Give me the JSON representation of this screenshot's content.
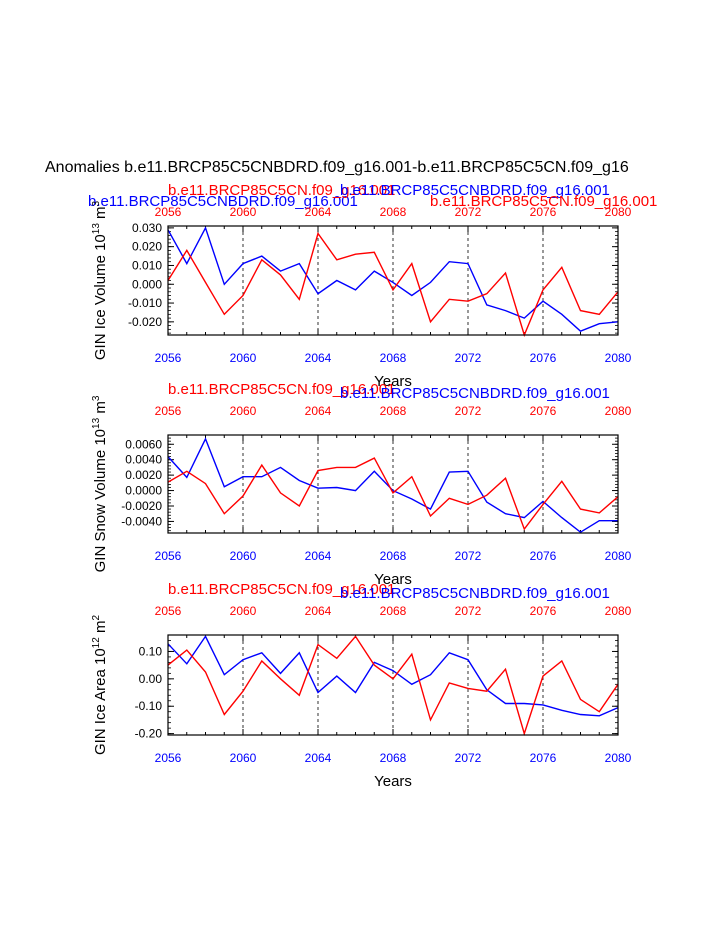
{
  "title": "Anomalies b.e11.BRCP85C5CNBDRD.f09_g16.001-b.e11.BRCP85C5CN.f09_g16",
  "colors": {
    "red": "#ff0000",
    "blue": "#0000ff",
    "black": "#000000"
  },
  "chart_data": [
    {
      "type": "line",
      "title_left_blue": "b.e11.BRCP85C5CNBDRD.f09_g16.001",
      "title_left_red": "b.e11.BRCP85C5CN.f09_g16.001",
      "title_center_blue": "b.e11.BRCP85C5CNBDRD.f09_g16.001",
      "title_right_red": "b.e11.BRCP85C5CN.f09_g16.001",
      "ylabel_main": "GIN Ice Volume 10",
      "ylabel_exp": "13",
      "ylabel_unit": " m",
      "ylabel_unit_exp": "3",
      "xlabel": "Years",
      "xlim": [
        2056,
        2080
      ],
      "ylim": [
        -0.027,
        0.031
      ],
      "yticks": [
        -0.02,
        -0.01,
        0.0,
        0.01,
        0.02,
        0.03
      ],
      "ytick_labels": [
        "-0.020",
        "-0.010",
        "0.000",
        "0.010",
        "0.020",
        "0.030"
      ],
      "xticks": [
        2056,
        2060,
        2064,
        2068,
        2072,
        2076,
        2080
      ],
      "xtick_labels": [
        "2056",
        "2060",
        "2064",
        "2068",
        "2072",
        "2076",
        "2080"
      ],
      "grid_x": [
        2060,
        2064,
        2068,
        2072,
        2076
      ],
      "x": [
        2056,
        2057,
        2058,
        2059,
        2060,
        2061,
        2062,
        2063,
        2064,
        2065,
        2066,
        2067,
        2068,
        2069,
        2070,
        2071,
        2072,
        2073,
        2074,
        2075,
        2076,
        2077,
        2078,
        2079,
        2080
      ],
      "series": [
        {
          "color": "blue",
          "values": [
            0.029,
            0.011,
            0.03,
            0.0,
            0.011,
            0.015,
            0.007,
            0.011,
            -0.005,
            0.002,
            -0.003,
            0.007,
            0.001,
            -0.006,
            0.001,
            0.012,
            0.011,
            -0.011,
            -0.014,
            -0.018,
            -0.009,
            -0.016,
            -0.025,
            -0.021,
            -0.02
          ]
        },
        {
          "color": "red",
          "values": [
            0.002,
            0.018,
            0.001,
            -0.016,
            -0.006,
            0.013,
            0.005,
            -0.008,
            0.027,
            0.013,
            0.016,
            0.017,
            -0.003,
            0.011,
            -0.02,
            -0.008,
            -0.009,
            -0.005,
            0.006,
            -0.027,
            -0.003,
            0.009,
            -0.014,
            -0.016,
            -0.004
          ]
        }
      ]
    },
    {
      "type": "line",
      "title_left_red": "b.e11.BRCP85C5CN.f09_g16.001",
      "title_center_blue": "b.e11.BRCP85C5CNBDRD.f09_g16.001",
      "ylabel_main": "GIN Snow Volume 10",
      "ylabel_exp": "13",
      "ylabel_unit": " m",
      "ylabel_unit_exp": "3",
      "xlabel": "Years",
      "xlim": [
        2056,
        2080
      ],
      "ylim": [
        -0.0055,
        0.0072
      ],
      "yticks": [
        -0.004,
        -0.002,
        0.0,
        0.002,
        0.004,
        0.006
      ],
      "ytick_labels": [
        "-0.0040",
        "-0.0020",
        "0.0000",
        "0.0020",
        "0.0040",
        "0.0060"
      ],
      "xticks": [
        2056,
        2060,
        2064,
        2068,
        2072,
        2076,
        2080
      ],
      "xtick_labels": [
        "2056",
        "2060",
        "2064",
        "2068",
        "2072",
        "2076",
        "2080"
      ],
      "grid_x": [
        2060,
        2064,
        2068,
        2072,
        2076
      ],
      "x": [
        2056,
        2057,
        2058,
        2059,
        2060,
        2061,
        2062,
        2063,
        2064,
        2065,
        2066,
        2067,
        2068,
        2069,
        2070,
        2071,
        2072,
        2073,
        2074,
        2075,
        2076,
        2077,
        2078,
        2079,
        2080
      ],
      "series": [
        {
          "color": "blue",
          "values": [
            0.0044,
            0.0017,
            0.0067,
            0.0005,
            0.0018,
            0.0018,
            0.003,
            0.0013,
            0.0003,
            0.0004,
            0.0,
            0.0025,
            0.0,
            -0.0011,
            -0.0024,
            0.0024,
            0.0025,
            -0.0015,
            -0.003,
            -0.0035,
            -0.0014,
            -0.0035,
            -0.0054,
            -0.0039,
            -0.0039
          ]
        },
        {
          "color": "red",
          "values": [
            0.0011,
            0.0025,
            0.0009,
            -0.003,
            -0.0007,
            0.0033,
            -0.0003,
            -0.002,
            0.0026,
            0.003,
            0.003,
            0.0042,
            -0.0003,
            0.0018,
            -0.0033,
            -0.001,
            -0.0018,
            -0.0006,
            0.0016,
            -0.005,
            -0.0018,
            0.0012,
            -0.0024,
            -0.0029,
            -0.0008
          ]
        }
      ]
    },
    {
      "type": "line",
      "title_left_red": "b.e11.BRCP85C5CN.f09_g16.001",
      "title_center_blue": "b.e11.BRCP85C5CNBDRD.f09_g16.001",
      "ylabel_main": "GIN Ice Area 10",
      "ylabel_exp": "12",
      "ylabel_unit": " m",
      "ylabel_unit_exp": "2",
      "xlabel": "Years",
      "xlim": [
        2056,
        2080
      ],
      "ylim": [
        -0.205,
        0.16
      ],
      "yticks": [
        -0.2,
        -0.1,
        0.0,
        0.1
      ],
      "ytick_labels": [
        "-0.20",
        "-0.10",
        "0.00",
        "0.10"
      ],
      "xticks": [
        2056,
        2060,
        2064,
        2068,
        2072,
        2076,
        2080
      ],
      "xtick_labels": [
        "2056",
        "2060",
        "2064",
        "2068",
        "2072",
        "2076",
        "2080"
      ],
      "grid_x": [
        2060,
        2064,
        2068,
        2072,
        2076
      ],
      "x": [
        2056,
        2057,
        2058,
        2059,
        2060,
        2061,
        2062,
        2063,
        2064,
        2065,
        2066,
        2067,
        2068,
        2069,
        2070,
        2071,
        2072,
        2073,
        2074,
        2075,
        2076,
        2077,
        2078,
        2079,
        2080
      ],
      "series": [
        {
          "color": "blue",
          "values": [
            0.128,
            0.055,
            0.155,
            0.015,
            0.07,
            0.095,
            0.02,
            0.095,
            -0.05,
            0.01,
            -0.05,
            0.06,
            0.03,
            -0.02,
            0.015,
            0.095,
            0.07,
            -0.04,
            -0.09,
            -0.09,
            -0.095,
            -0.115,
            -0.13,
            -0.135,
            -0.105
          ]
        },
        {
          "color": "red",
          "values": [
            0.05,
            0.105,
            0.025,
            -0.13,
            -0.045,
            0.065,
            0.0,
            -0.06,
            0.125,
            0.075,
            0.155,
            0.05,
            0.0,
            0.09,
            -0.15,
            -0.015,
            -0.035,
            -0.045,
            0.035,
            -0.2,
            0.01,
            0.065,
            -0.075,
            -0.12,
            -0.02
          ]
        }
      ]
    }
  ]
}
